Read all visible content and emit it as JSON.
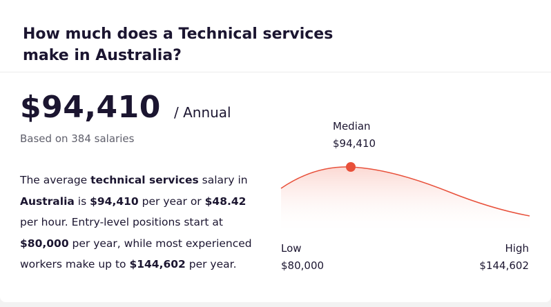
{
  "header": {
    "title": "How much does a Technical services make in Australia?"
  },
  "salary": {
    "amount": "$94,410",
    "period": "/ Annual",
    "based_on": "Based on 384 salaries"
  },
  "description": {
    "p1": "The average ",
    "b1": "technical services",
    "p2": " salary in ",
    "b2": "Australia",
    "p3": " is ",
    "b3": "$94,410",
    "p4": " per year or ",
    "b4": "$48.42",
    "p5": " per hour. Entry-level positions start at ",
    "b5": "$80,000",
    "p6": " per year, while most experienced workers make up to ",
    "b6": "$144,602",
    "p7": " per year."
  },
  "chart": {
    "median_label": "Median",
    "median_value": "$94,410",
    "low_label": "Low",
    "low_value": "$80,000",
    "high_label": "High",
    "high_value": "$144,602",
    "curve_color": "#e8503a",
    "fill_color": "#fde3df"
  }
}
